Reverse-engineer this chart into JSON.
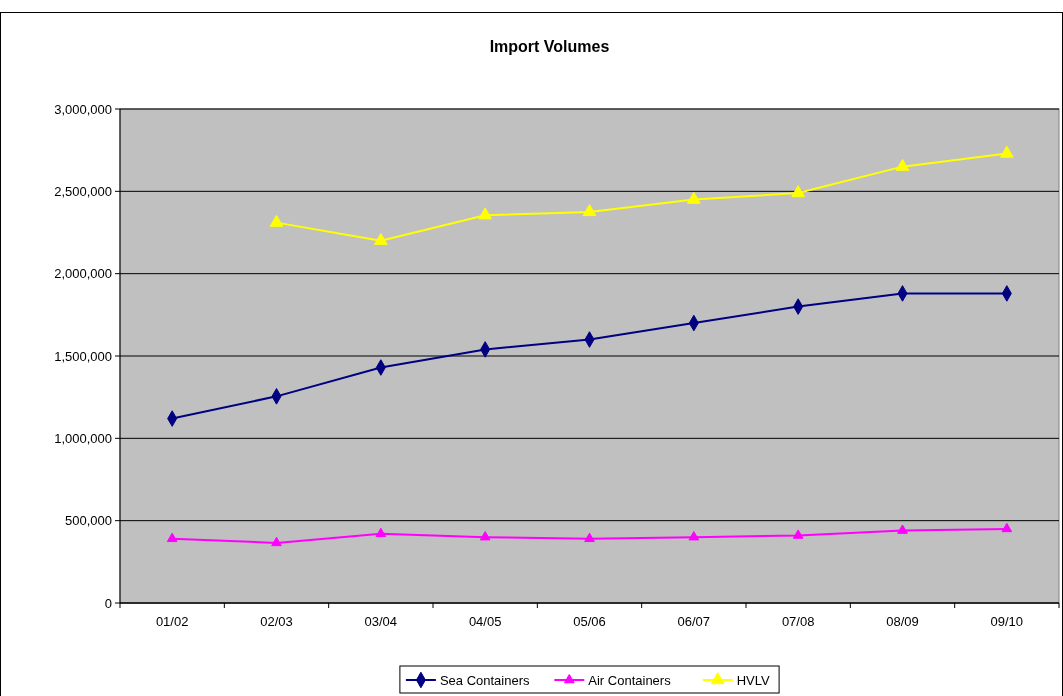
{
  "chart_data": {
    "type": "line",
    "title": "Import Volumes",
    "categories": [
      "01/02",
      "02/03",
      "03/04",
      "04/05",
      "05/06",
      "06/07",
      "07/08",
      "08/09",
      "09/10"
    ],
    "series": [
      {
        "name": "Sea Containers",
        "color": "#000080",
        "marker": "diamond",
        "values": [
          1120000,
          1255000,
          1430000,
          1540000,
          1600000,
          1700000,
          1800000,
          1880000,
          1880000
        ]
      },
      {
        "name": "Air Containers",
        "color": "#ff00ff",
        "marker": "triangle",
        "values": [
          390000,
          365000,
          420000,
          400000,
          390000,
          400000,
          410000,
          440000,
          450000
        ]
      },
      {
        "name": "HVLV",
        "color": "#ffff00",
        "marker": "triangle",
        "values": [
          null,
          2310000,
          2200000,
          2355000,
          2375000,
          2450000,
          2490000,
          2650000,
          2730000
        ]
      }
    ],
    "ylim": [
      0,
      3000000
    ],
    "yticks": [
      {
        "value": 0,
        "label": "0"
      },
      {
        "value": 500000,
        "label": "500,000"
      },
      {
        "value": 1000000,
        "label": "1,000,000"
      },
      {
        "value": 1500000,
        "label": "1,500,000"
      },
      {
        "value": 2000000,
        "label": "2,000,000"
      },
      {
        "value": 2500000,
        "label": "2,500,000"
      },
      {
        "value": 3000000,
        "label": "3,000,000"
      }
    ],
    "grid": "y",
    "legend": "bottom",
    "line_style": "solid"
  }
}
